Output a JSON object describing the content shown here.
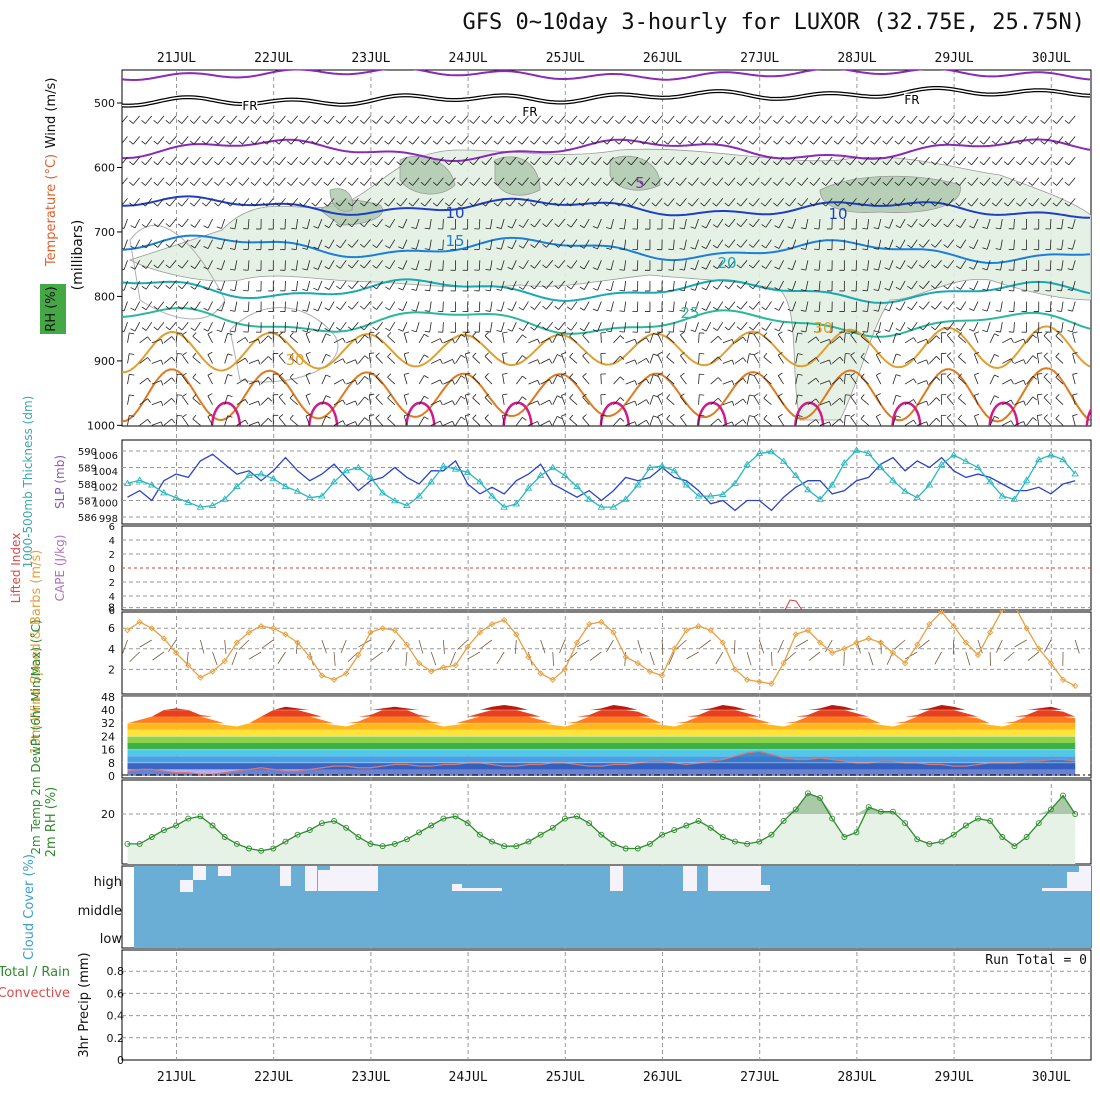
{
  "title": "GFS 0~10day 3-hourly for LUXOR (32.75E, 25.75N)",
  "dates": [
    "21JUL",
    "22JUL",
    "23JUL",
    "24JUL",
    "25JUL",
    "26JUL",
    "27JUL",
    "28JUL",
    "29JUL",
    "30JUL"
  ],
  "colors": {
    "grid": "#999999",
    "rh_green": "#2e8b2e",
    "wind_barb": "#222222",
    "thickness": "#2a44c8",
    "slp": "#27b8c0",
    "wind10": "#e8a040",
    "barb10": "#7a5a40",
    "rh2m": "#2e8b2e",
    "cloud": "#6aaed6",
    "cape": "#d04040"
  },
  "panels": {
    "upper": {
      "ylabel": "(millibars)",
      "left_labels": {
        "wind": "Wind (m/s)",
        "temp": "Temperature (°C)",
        "rh": "RH (%)"
      },
      "pressure_ticks": [
        "500",
        "600",
        "700",
        "800",
        "900",
        "1000"
      ],
      "fr_label": "FR"
    },
    "thickness": {
      "ylabel_left": "1000-500mb Thickness (dm)",
      "ylabel_right": "SLP (mb)",
      "left_ticks": [
        "586",
        "587",
        "588",
        "589",
        "590"
      ],
      "right_ticks": [
        "998",
        "1000",
        "1002",
        "1004",
        "1006"
      ]
    },
    "stability": {
      "ylabel_left": "Lifted Index",
      "ylabel_right": "CAPE (J/kg)",
      "ticks": [
        "6",
        "4",
        "2",
        "0",
        "-2",
        "-4",
        "-6"
      ]
    },
    "wind10": {
      "ylabel": "10m Wind Speed & Barbs (m/s)",
      "ticks": [
        "8",
        "6",
        "4",
        "2"
      ]
    },
    "temp2m": {
      "ylabel": "2m Temp 2m DewPt (6hr Min/Max) (°C)",
      "ticks": [
        "48",
        "40",
        "32",
        "24",
        "16",
        "8",
        "0"
      ]
    },
    "rh2m": {
      "ylabel": "2m RH (%)",
      "ticks": [
        "20"
      ]
    },
    "cloud": {
      "ylabel": "Cloud Cover (%)",
      "levels": [
        "high",
        "middle",
        "low"
      ]
    },
    "precip": {
      "ylabel_left": "Total / Rain Convective",
      "ylabel_right": "3hr Precip (mm)",
      "ticks": [
        "0.8",
        "0.6",
        "0.4",
        "0.2",
        "0"
      ],
      "run_total": "Run Total = 0"
    }
  },
  "chart_data": {
    "type": "line",
    "x_unit": "3-hourly steps from 20JUL 12UTC",
    "upper_contours": {
      "isotherm_labels": [
        "5",
        "10",
        "15",
        "20",
        "25",
        "30"
      ]
    },
    "series": [
      {
        "name": "1000-500mb Thickness (dm)",
        "values": [
          587.2,
          587.6,
          587.0,
          588.2,
          588.6,
          588.4,
          589.4,
          589.8,
          589.2,
          588.6,
          588.8,
          588.2,
          588.8,
          589.6,
          588.8,
          588.2,
          588.6,
          589.2,
          588.4,
          587.6,
          588.2,
          588.4,
          589.0,
          588.4,
          588.0,
          588.8,
          588.8,
          589.4,
          588.0,
          587.4,
          587.8,
          587.4,
          588.2,
          588.6,
          589.2,
          588.0,
          587.6,
          587.2,
          587.6,
          587.0,
          587.6,
          588.4,
          588.2,
          588.4,
          589.0,
          588.4,
          588.2,
          587.6,
          586.8,
          587.0,
          586.4,
          587.0,
          587.0,
          586.4,
          587.2,
          587.8,
          588.2,
          588.2,
          587.4,
          587.6,
          588.2,
          588.4,
          589.2,
          589.6,
          588.8,
          589.4,
          589.0,
          589.6,
          588.8,
          588.4,
          588.6,
          588.4,
          588.0,
          587.6,
          587.6,
          587.8,
          587.4,
          588.0,
          588.2
        ]
      },
      {
        "name": "SLP (mb)",
        "values": [
          1002.4,
          1002.8,
          1002.2,
          1001.2,
          1000.6,
          1000.0,
          999.4,
          999.6,
          1000.4,
          1002.0,
          1003.4,
          1003.6,
          1003.0,
          1002.0,
          1001.4,
          1000.6,
          1000.8,
          1002.6,
          1004.0,
          1004.4,
          1003.2,
          1001.2,
          1000.2,
          999.6,
          1000.8,
          1002.6,
          1004.6,
          1004.2,
          1003.8,
          1002.6,
          1000.8,
          999.4,
          999.8,
          1001.8,
          1003.4,
          1004.4,
          1003.4,
          1002.0,
          1000.4,
          999.4,
          999.4,
          1000.4,
          1002.2,
          1004.4,
          1004.6,
          1004.0,
          1002.2,
          1000.8,
          1000.8,
          1001.0,
          1002.4,
          1004.8,
          1006.2,
          1006.4,
          1005.2,
          1003.4,
          1001.6,
          1000.4,
          1002.2,
          1005.0,
          1006.6,
          1006.2,
          1004.4,
          1002.8,
          1001.4,
          1000.6,
          1002.2,
          1004.8,
          1006.0,
          1005.2,
          1004.4,
          1002.6,
          1000.8,
          1000.4,
          1002.8,
          1005.4,
          1006.0,
          1005.4,
          1003.6
        ]
      },
      {
        "name": "10m Wind Speed (m/s)",
        "values": [
          5.8,
          6.6,
          6.0,
          5.0,
          3.6,
          2.4,
          1.2,
          1.8,
          2.8,
          4.6,
          5.6,
          6.2,
          6.0,
          5.4,
          4.6,
          3.2,
          1.4,
          1.0,
          1.6,
          3.4,
          5.6,
          6.0,
          5.8,
          4.4,
          2.6,
          1.8,
          2.2,
          2.4,
          4.2,
          5.6,
          6.4,
          6.8,
          5.4,
          3.2,
          1.6,
          1.0,
          2.0,
          4.6,
          6.4,
          6.6,
          5.6,
          3.2,
          2.6,
          1.8,
          1.4,
          4.0,
          5.8,
          6.2,
          5.8,
          4.6,
          2.0,
          1.0,
          0.8,
          0.6,
          2.6,
          5.4,
          5.8,
          4.6,
          3.6,
          4.0,
          4.6,
          5.0,
          4.6,
          3.6,
          2.6,
          4.4,
          6.4,
          7.6,
          6.2,
          4.6,
          3.4,
          5.6,
          7.8,
          8.2,
          6.0,
          4.0,
          2.6,
          1.0,
          0.4
        ]
      },
      {
        "name": "2m Temp (°C)",
        "values": [
          32,
          34,
          36,
          40,
          41,
          40,
          37,
          34,
          31,
          30,
          32,
          36,
          40,
          42,
          41,
          38,
          34,
          31,
          30,
          33,
          37,
          41,
          42,
          41,
          37,
          33,
          30,
          31,
          34,
          38,
          42,
          43,
          42,
          38,
          34,
          31,
          30,
          33,
          37,
          41,
          43,
          42,
          39,
          35,
          31,
          30,
          33,
          37,
          41,
          43,
          42,
          38,
          34,
          31,
          30,
          33,
          37,
          41,
          43,
          42,
          38,
          35,
          31,
          30,
          33,
          37,
          41,
          43,
          42,
          38,
          35,
          31,
          30,
          33,
          37,
          41,
          42,
          39,
          35
        ]
      },
      {
        "name": "2m DewPt (°C)",
        "values": [
          3,
          4,
          4,
          3,
          2,
          2,
          1,
          1,
          2,
          3,
          4,
          5,
          4,
          3,
          3,
          4,
          5,
          6,
          6,
          5,
          5,
          6,
          7,
          7,
          6,
          6,
          7,
          7,
          8,
          8,
          7,
          6,
          6,
          7,
          7,
          8,
          8,
          7,
          6,
          6,
          7,
          7,
          8,
          9,
          9,
          8,
          7,
          8,
          9,
          10,
          12,
          14,
          15,
          13,
          11,
          10,
          10,
          11,
          10,
          9,
          8,
          8,
          9,
          9,
          8,
          8,
          7,
          7,
          6,
          6,
          7,
          8,
          8,
          8,
          9,
          9,
          10,
          10,
          9
        ]
      },
      {
        "name": "2m RH (%)",
        "values": [
          7,
          7,
          10,
          13,
          15,
          18,
          19,
          15,
          10,
          7,
          5,
          4,
          5,
          8,
          11,
          13,
          16,
          17,
          14,
          10,
          7,
          6,
          7,
          9,
          12,
          15,
          18,
          19,
          16,
          11,
          8,
          6,
          6,
          8,
          11,
          14,
          18,
          19,
          16,
          11,
          7,
          5,
          5,
          7,
          11,
          13,
          15,
          17,
          14,
          10,
          8,
          7,
          8,
          11,
          17,
          22,
          29,
          27,
          18,
          10,
          12,
          23,
          21,
          21,
          16,
          9,
          7,
          8,
          11,
          15,
          18,
          17,
          10,
          6,
          10,
          16,
          22,
          28,
          20
        ]
      },
      {
        "name": "3hr Precip (mm)",
        "values": [
          0,
          0,
          0,
          0,
          0,
          0,
          0,
          0,
          0,
          0,
          0,
          0,
          0,
          0,
          0,
          0,
          0,
          0,
          0,
          0,
          0,
          0,
          0,
          0,
          0,
          0,
          0,
          0,
          0,
          0,
          0,
          0,
          0,
          0,
          0,
          0,
          0,
          0,
          0,
          0,
          0,
          0,
          0,
          0,
          0,
          0,
          0,
          0,
          0,
          0,
          0,
          0,
          0,
          0,
          0,
          0,
          0,
          0,
          0,
          0,
          0,
          0,
          0,
          0,
          0,
          0,
          0,
          0,
          0,
          0,
          0,
          0,
          0,
          0,
          0,
          0,
          0,
          0,
          0
        ]
      }
    ]
  }
}
